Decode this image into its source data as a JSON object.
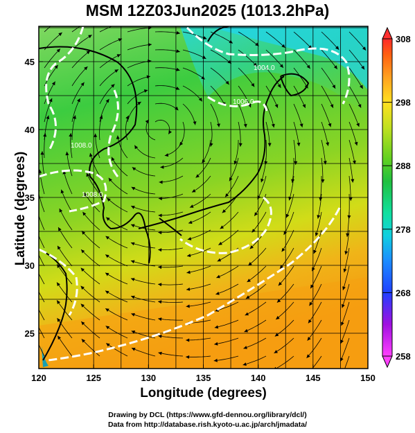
{
  "title": "MSM 12Z03Jun2025 (1013.2hPa)",
  "axes": {
    "xlabel": "Longitude (degrees)",
    "ylabel": "Latitude  (degrees)",
    "x_ticks": [
      "120",
      "125",
      "130",
      "135",
      "140",
      "145",
      "150"
    ],
    "y_ticks": [
      "25",
      "30",
      "35",
      "40",
      "45"
    ],
    "x_range": [
      120,
      150
    ],
    "y_range": [
      22.4,
      47.6
    ]
  },
  "colorbar": {
    "ticks": [
      "258",
      "268",
      "278",
      "288",
      "298",
      "308"
    ],
    "range": [
      258,
      308
    ],
    "colors": [
      "#ff40ff",
      "#a010e0",
      "#2040ff",
      "#1c8cff",
      "#10d0e0",
      "#10e0a0",
      "#20c040",
      "#60d020",
      "#c0e020",
      "#ffe020",
      "#ffa020",
      "#ff6010",
      "#ff2a2a"
    ]
  },
  "contour_labels": [
    "1004.0",
    "1006.0",
    "1008.0",
    "1008.0"
  ],
  "credits": {
    "line1": "Drawing by DCL (https://www.gfd-dennou.org/library/dcl/)",
    "line2": "Data from http://database.rish.kyoto-u.ac.jp/arch/jmadata/"
  }
}
